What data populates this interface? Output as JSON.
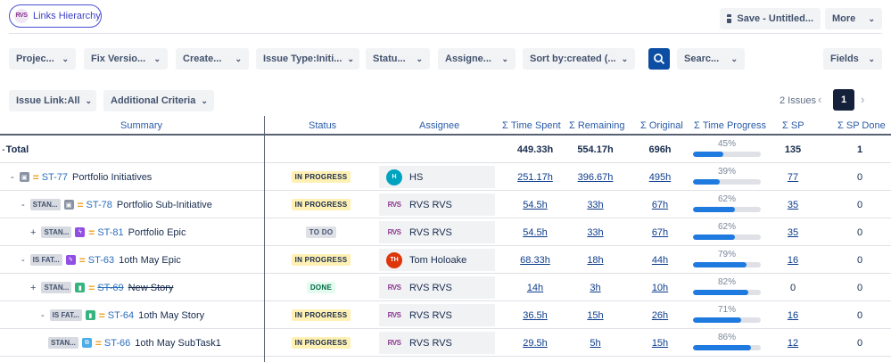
{
  "app": {
    "logo": "RVS",
    "title": "Links Hierarchy"
  },
  "toolbar": {
    "save_label": "Save - Untitled...",
    "more_label": "More"
  },
  "filters": [
    {
      "label": "Projec...",
      "id": "project"
    },
    {
      "label": "Fix Versio...",
      "id": "fixversion"
    },
    {
      "label": "Create...",
      "id": "create"
    },
    {
      "label": "Issue Type:Initi...",
      "id": "issuetype"
    },
    {
      "label": "Statu...",
      "id": "status"
    },
    {
      "label": "Assigne...",
      "id": "assignee"
    },
    {
      "label": "Sort by:created (...",
      "id": "sort"
    },
    {
      "label": "Searc...",
      "id": "search"
    },
    {
      "label": "Fields",
      "id": "fields"
    }
  ],
  "filters2": {
    "issue_link": "Issue Link:All",
    "additional": "Additional Criteria"
  },
  "pagination": {
    "count": "2 Issues",
    "page": "1"
  },
  "columns": {
    "summary": "Summary",
    "status": "Status",
    "assignee": "Assignee",
    "time_spent": "Σ Time Spent",
    "remaining": "Σ Remaining",
    "original": "Σ Original",
    "time_progress": "Σ Time Progress",
    "sp": "Σ SP",
    "sp_done": "Σ SP Done"
  },
  "total": {
    "toggle": "-",
    "label": "Total",
    "time_spent": "449.33h",
    "remaining": "554.17h",
    "original": "696h",
    "progress": "45%",
    "progress_value": 0.45,
    "sp": "135",
    "sp_done": "1"
  },
  "rows": [
    {
      "toggle": "-",
      "tag": "",
      "type_icon": "initiative-icon",
      "type_color": "#8993a4",
      "key": "ST-77",
      "summary": "Portfolio Initiatives",
      "status": "IN PROGRESS",
      "status_kind": "prog",
      "avatar": "H",
      "avatar_color": "#00a3bf",
      "assignee": "HS",
      "time_spent": "251.17h",
      "remaining": "396.67h",
      "original": "495h",
      "progress": "39%",
      "progress_value": 0.39,
      "sp": "77",
      "sp_link": true,
      "sp_done": "0",
      "strike": false
    },
    {
      "toggle": "-",
      "tag": "STAN...",
      "type_icon": "initiative-icon",
      "type_color": "#8993a4",
      "key": "ST-78",
      "summary": "Portfolio Sub-Initiative",
      "status": "IN PROGRESS",
      "status_kind": "prog",
      "avatar": "RVS",
      "avatar_color": "",
      "assignee": "RVS RVS",
      "time_spent": "54.5h",
      "remaining": "33h",
      "original": "67h",
      "progress": "62%",
      "progress_value": 0.62,
      "sp": "35",
      "sp_link": true,
      "sp_done": "0",
      "strike": false
    },
    {
      "toggle": "+",
      "tag": "STAN...",
      "type_icon": "epic-icon",
      "type_color": "#904ee2",
      "key": "ST-81",
      "summary": "Portfolio Epic",
      "status": "TO DO",
      "status_kind": "todo",
      "avatar": "RVS",
      "avatar_color": "",
      "assignee": "RVS RVS",
      "time_spent": "54.5h",
      "remaining": "33h",
      "original": "67h",
      "progress": "62%",
      "progress_value": 0.62,
      "sp": "35",
      "sp_link": true,
      "sp_done": "0",
      "strike": false
    },
    {
      "toggle": "-",
      "tag": "IS FAT...",
      "type_icon": "epic-icon",
      "type_color": "#904ee2",
      "key": "ST-63",
      "summary": "1oth May Epic",
      "status": "IN PROGRESS",
      "status_kind": "prog",
      "avatar": "TH",
      "avatar_color": "#de350b",
      "assignee": "Tom Holoake",
      "time_spent": "68.33h",
      "remaining": "18h",
      "original": "44h",
      "progress": "79%",
      "progress_value": 0.79,
      "sp": "16",
      "sp_link": true,
      "sp_done": "0",
      "strike": false
    },
    {
      "toggle": "+",
      "tag": "STAN...",
      "type_icon": "story-icon",
      "type_color": "#36b37e",
      "key": "ST-69",
      "summary": "New Story",
      "status": "DONE",
      "status_kind": "done",
      "avatar": "RVS",
      "avatar_color": "",
      "assignee": "RVS RVS",
      "time_spent": "14h",
      "remaining": "3h",
      "original": "10h",
      "progress": "82%",
      "progress_value": 0.82,
      "sp": "0",
      "sp_link": false,
      "sp_done": "0",
      "strike": true
    },
    {
      "toggle": "-",
      "tag": "IS FAT...",
      "type_icon": "story-icon",
      "type_color": "#36b37e",
      "key": "ST-64",
      "summary": "1oth May Story",
      "status": "IN PROGRESS",
      "status_kind": "prog",
      "avatar": "RVS",
      "avatar_color": "",
      "assignee": "RVS RVS",
      "time_spent": "36.5h",
      "remaining": "15h",
      "original": "26h",
      "progress": "71%",
      "progress_value": 0.71,
      "sp": "16",
      "sp_link": true,
      "sp_done": "0",
      "strike": false
    },
    {
      "toggle": "",
      "tag": "STAN...",
      "type_icon": "subtask-icon",
      "type_color": "#4bade8",
      "key": "ST-66",
      "summary": "1oth May SubTask1",
      "status": "IN PROGRESS",
      "status_kind": "prog",
      "avatar": "RVS",
      "avatar_color": "",
      "assignee": "RVS RVS",
      "time_spent": "29.5h",
      "remaining": "5h",
      "original": "15h",
      "progress": "86%",
      "progress_value": 0.86,
      "sp": "12",
      "sp_link": true,
      "sp_done": "0",
      "strike": false
    }
  ]
}
